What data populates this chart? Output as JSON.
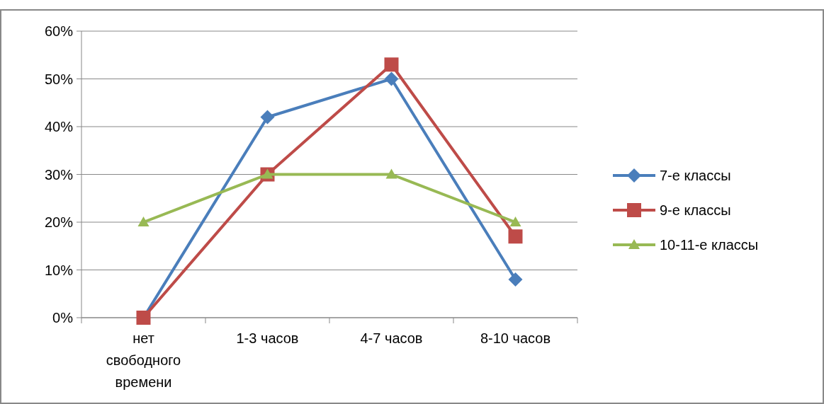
{
  "chart_data": {
    "type": "line",
    "categories": [
      "нет свободного времени",
      "1-3 часов",
      "4-7 часов",
      "8-10 часов"
    ],
    "series": [
      {
        "name": "7-е классы",
        "color": "#4a7ebb",
        "marker": "diamond",
        "values": [
          0,
          42,
          50,
          8
        ]
      },
      {
        "name": "9-е классы",
        "color": "#be4b48",
        "marker": "square",
        "values": [
          0,
          30,
          53,
          17
        ]
      },
      {
        "name": "10-11-е классы",
        "color": "#98b954",
        "marker": "triangle",
        "values": [
          20,
          30,
          30,
          20
        ]
      }
    ],
    "ylim": [
      0,
      60
    ],
    "yticks": [
      {
        "value": 0,
        "label": "0%"
      },
      {
        "value": 10,
        "label": "10%"
      },
      {
        "value": 20,
        "label": "20%"
      },
      {
        "value": 30,
        "label": "30%"
      },
      {
        "value": 40,
        "label": "40%"
      },
      {
        "value": 50,
        "label": "50%"
      },
      {
        "value": 60,
        "label": "60%"
      }
    ],
    "grid": "y",
    "legend": "right",
    "line_style": "solid"
  }
}
